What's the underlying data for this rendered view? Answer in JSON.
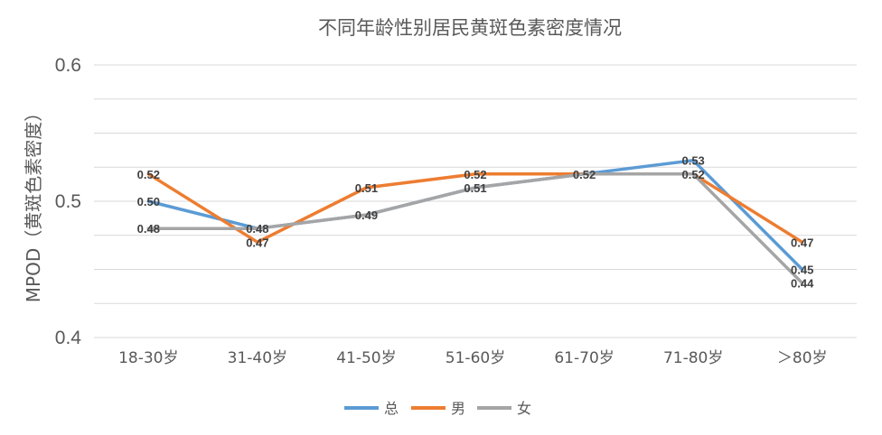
{
  "chart_data": {
    "type": "line",
    "title": "不同年龄性别居民黄斑色素密度情况",
    "ylabel": "MPOD（黄斑色素密度）",
    "xlabel": "",
    "categories": [
      "18-30岁",
      "31-40岁",
      "41-50岁",
      "51-60岁",
      "61-70岁",
      "71-80岁",
      "＞80岁"
    ],
    "ylim": [
      0.4,
      0.6
    ],
    "yticks": [
      0.4,
      0.5,
      0.6
    ],
    "ytick_labels": [
      "0.4",
      "0.5",
      "0.6"
    ],
    "grid": true,
    "legend_position": "bottom",
    "series": [
      {
        "name": "总",
        "color": "#5B9BD5",
        "values": [
          0.5,
          0.48,
          0.49,
          0.51,
          0.52,
          0.53,
          0.45
        ],
        "labels": [
          "0.50",
          "0.48",
          "",
          "",
          "",
          "0.53",
          "0.45"
        ]
      },
      {
        "name": "男",
        "color": "#ED7D31",
        "values": [
          0.52,
          0.47,
          0.51,
          0.52,
          0.52,
          0.52,
          0.47
        ],
        "labels": [
          "0.52",
          "0.47",
          "0.51",
          "0.52",
          "",
          "",
          "0.47"
        ]
      },
      {
        "name": "女",
        "color": "#A5A5A5",
        "values": [
          0.48,
          0.48,
          0.49,
          0.51,
          0.52,
          0.52,
          0.44
        ],
        "labels": [
          "0.48",
          "",
          "0.49",
          "0.51",
          "0.52",
          "0.52",
          "0.44"
        ]
      }
    ]
  }
}
